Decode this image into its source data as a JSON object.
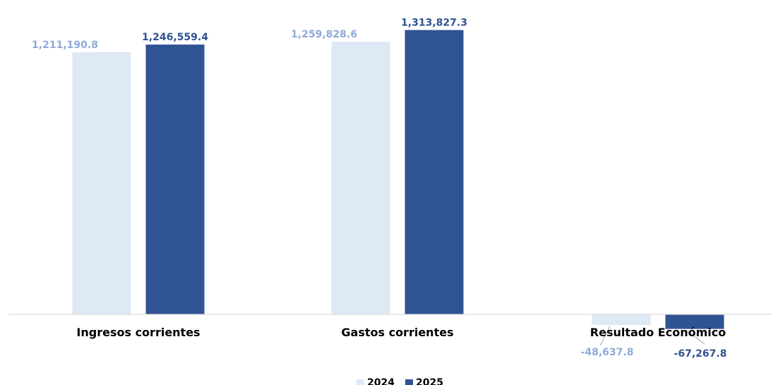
{
  "chart_data": {
    "type": "bar",
    "categories": [
      "Ingresos corrientes",
      "Gastos corrientes",
      "Resultado Económico"
    ],
    "series": [
      {
        "name": "2024",
        "values": [
          1211190.8,
          1259828.6,
          -48637.8
        ],
        "labels": [
          "1,211,190.8",
          "1,259,828.6",
          "-48,637.8"
        ],
        "color": "#DDE9F5",
        "label_color": "#8FAAD8"
      },
      {
        "name": "2025",
        "values": [
          1246559.4,
          1313827.3,
          -67267.8
        ],
        "labels": [
          "1,246,559.4",
          "1,313,827.3",
          "-67,267.8"
        ],
        "color": "#2F5393",
        "label_color": "#2F5393"
      }
    ],
    "ylim": [
      -70000,
      1350000
    ],
    "grid": false,
    "legend": "bottom-center"
  }
}
